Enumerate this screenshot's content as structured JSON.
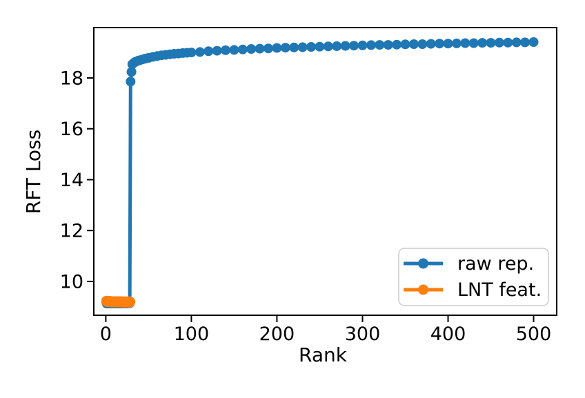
{
  "chart_data": {
    "type": "line",
    "title": "",
    "xlabel": "Rank",
    "ylabel": "RFT Loss",
    "xlim": [
      -14,
      527
    ],
    "ylim": [
      8.67,
      19.98
    ],
    "x_ticks": [
      0,
      100,
      200,
      300,
      400,
      500
    ],
    "y_ticks": [
      10,
      12,
      14,
      16,
      18
    ],
    "grid": false,
    "legend_position": "lower right",
    "series": [
      {
        "name": "raw rep.",
        "color": "#1f77b4",
        "marker": "circle",
        "marker_radius": 7,
        "line_width": 5,
        "points": [
          [
            1,
            9.13
          ],
          [
            3,
            9.13
          ],
          [
            5,
            9.13
          ],
          [
            7,
            9.13
          ],
          [
            9,
            9.13
          ],
          [
            11,
            9.13
          ],
          [
            13,
            9.13
          ],
          [
            15,
            9.13
          ],
          [
            17,
            9.13
          ],
          [
            19,
            9.13
          ],
          [
            21,
            9.13
          ],
          [
            23,
            9.13
          ],
          [
            25,
            9.13
          ],
          [
            27,
            9.14
          ],
          [
            28,
            9.14
          ],
          [
            29,
            17.86
          ],
          [
            30,
            18.24
          ],
          [
            31,
            18.54
          ],
          [
            33,
            18.6
          ],
          [
            35,
            18.64
          ],
          [
            38,
            18.68
          ],
          [
            40,
            18.7
          ],
          [
            43,
            18.73
          ],
          [
            46,
            18.76
          ],
          [
            50,
            18.79
          ],
          [
            55,
            18.83
          ],
          [
            60,
            18.86
          ],
          [
            65,
            18.89
          ],
          [
            70,
            18.91
          ],
          [
            75,
            18.93
          ],
          [
            80,
            18.95
          ],
          [
            85,
            18.96
          ],
          [
            90,
            18.98
          ],
          [
            95,
            18.99
          ],
          [
            100,
            19.0
          ],
          [
            110,
            19.02
          ],
          [
            120,
            19.05
          ],
          [
            130,
            19.07
          ],
          [
            140,
            19.09
          ],
          [
            150,
            19.1
          ],
          [
            160,
            19.12
          ],
          [
            170,
            19.14
          ],
          [
            180,
            19.15
          ],
          [
            190,
            19.16
          ],
          [
            200,
            19.18
          ],
          [
            210,
            19.19
          ],
          [
            220,
            19.2
          ],
          [
            230,
            19.21
          ],
          [
            240,
            19.22
          ],
          [
            250,
            19.23
          ],
          [
            260,
            19.24
          ],
          [
            270,
            19.25
          ],
          [
            280,
            19.26
          ],
          [
            290,
            19.27
          ],
          [
            300,
            19.28
          ],
          [
            310,
            19.29
          ],
          [
            320,
            19.3
          ],
          [
            330,
            19.3
          ],
          [
            340,
            19.31
          ],
          [
            350,
            19.32
          ],
          [
            360,
            19.33
          ],
          [
            370,
            19.33
          ],
          [
            380,
            19.34
          ],
          [
            390,
            19.35
          ],
          [
            400,
            19.35
          ],
          [
            410,
            19.36
          ],
          [
            420,
            19.37
          ],
          [
            430,
            19.37
          ],
          [
            440,
            19.38
          ],
          [
            450,
            19.38
          ],
          [
            460,
            19.39
          ],
          [
            470,
            19.39
          ],
          [
            480,
            19.4
          ],
          [
            490,
            19.4
          ],
          [
            500,
            19.41
          ]
        ]
      },
      {
        "name": "LNT feat.",
        "color": "#ff7f0e",
        "marker": "circle",
        "marker_radius": 8,
        "line_width": 5,
        "points": [
          [
            1,
            9.22
          ],
          [
            3,
            9.21
          ],
          [
            5,
            9.21
          ],
          [
            7,
            9.2
          ],
          [
            9,
            9.2
          ],
          [
            11,
            9.2
          ],
          [
            13,
            9.2
          ],
          [
            15,
            9.2
          ],
          [
            17,
            9.2
          ],
          [
            19,
            9.19
          ],
          [
            21,
            9.19
          ],
          [
            23,
            9.19
          ],
          [
            25,
            9.19
          ],
          [
            27,
            9.19
          ],
          [
            28,
            9.19
          ]
        ]
      }
    ]
  },
  "colors": {
    "axis": "#000000",
    "legend_border": "#cccccc",
    "legend_background": "#ffffff",
    "background": "#ffffff"
  }
}
